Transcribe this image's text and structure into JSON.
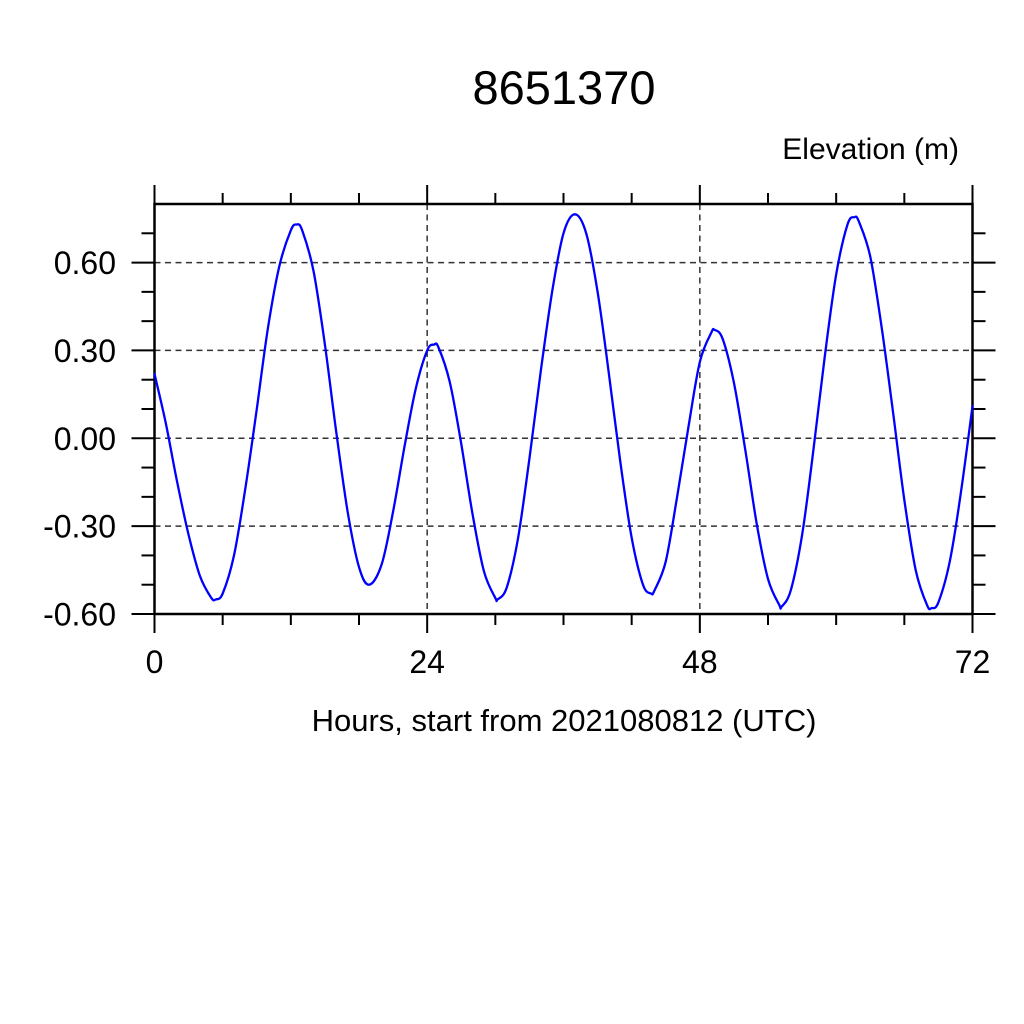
{
  "page": {
    "background": "#ffffff"
  },
  "chart_data": {
    "type": "line",
    "title": "8651370",
    "right_label": "Elevation (m)",
    "xlabel": "Hours, start from 2021080812 (UTC)",
    "xlim": [
      0,
      72
    ],
    "ylim": [
      -0.6,
      0.8
    ],
    "grid": "dashed",
    "legend": "none",
    "line_color": "#0000ff",
    "axis_color": "#000000",
    "x_major_ticks": [
      {
        "value": 0,
        "label": "0"
      },
      {
        "value": 24,
        "label": "24"
      },
      {
        "value": 48,
        "label": "48"
      },
      {
        "value": 72,
        "label": "72"
      }
    ],
    "x_minor_ticks": [
      6,
      12,
      18,
      30,
      36,
      42,
      54,
      60,
      66
    ],
    "y_major_ticks": [
      {
        "value": 0.6,
        "label": "0.60"
      },
      {
        "value": 0.3,
        "label": "0.30"
      },
      {
        "value": 0.0,
        "label": "0.00"
      },
      {
        "value": -0.3,
        "label": "-0.30"
      },
      {
        "value": -0.6,
        "label": "-0.60"
      }
    ],
    "y_minor_ticks": [
      0.7,
      0.5,
      0.4,
      0.2,
      0.1,
      -0.1,
      -0.2,
      -0.4,
      -0.5
    ],
    "x_gridlines": [
      24,
      48
    ],
    "y_gridlines": [
      0.6,
      0.3,
      0.0,
      -0.3
    ],
    "series": [
      {
        "name": "elevation",
        "points": [
          [
            0,
            0.22
          ],
          [
            1,
            0.05
          ],
          [
            2,
            -0.15
          ],
          [
            3,
            -0.33
          ],
          [
            4,
            -0.47
          ],
          [
            5,
            -0.545
          ],
          [
            5.4,
            -0.55
          ],
          [
            6,
            -0.53
          ],
          [
            7,
            -0.4
          ],
          [
            8,
            -0.17
          ],
          [
            9,
            0.1
          ],
          [
            10,
            0.38
          ],
          [
            11,
            0.59
          ],
          [
            12,
            0.71
          ],
          [
            12.5,
            0.73
          ],
          [
            13,
            0.71
          ],
          [
            14,
            0.57
          ],
          [
            15,
            0.32
          ],
          [
            16,
            0.02
          ],
          [
            17,
            -0.25
          ],
          [
            18,
            -0.44
          ],
          [
            18.9,
            -0.5
          ],
          [
            20,
            -0.43
          ],
          [
            21,
            -0.25
          ],
          [
            22,
            -0.03
          ],
          [
            23,
            0.17
          ],
          [
            24,
            0.3
          ],
          [
            24.6,
            0.32
          ],
          [
            25,
            0.31
          ],
          [
            26,
            0.19
          ],
          [
            27,
            -0.02
          ],
          [
            28,
            -0.26
          ],
          [
            29,
            -0.455
          ],
          [
            30,
            -0.545
          ],
          [
            30.2,
            -0.55
          ],
          [
            31,
            -0.51
          ],
          [
            32,
            -0.34
          ],
          [
            33,
            -0.07
          ],
          [
            34,
            0.23
          ],
          [
            35,
            0.5
          ],
          [
            36,
            0.7
          ],
          [
            37,
            0.765
          ],
          [
            38,
            0.7
          ],
          [
            39,
            0.5
          ],
          [
            40,
            0.22
          ],
          [
            41,
            -0.08
          ],
          [
            42,
            -0.34
          ],
          [
            43,
            -0.5
          ],
          [
            43.7,
            -0.53
          ],
          [
            44,
            -0.52
          ],
          [
            45,
            -0.42
          ],
          [
            46,
            -0.2
          ],
          [
            47,
            0.04
          ],
          [
            48,
            0.26
          ],
          [
            49,
            0.36
          ],
          [
            49.3,
            0.37
          ],
          [
            50,
            0.34
          ],
          [
            51,
            0.19
          ],
          [
            52,
            -0.04
          ],
          [
            53,
            -0.29
          ],
          [
            54,
            -0.48
          ],
          [
            55,
            -0.57
          ],
          [
            55.2,
            -0.575
          ],
          [
            56,
            -0.52
          ],
          [
            57,
            -0.33
          ],
          [
            58,
            -0.04
          ],
          [
            59,
            0.28
          ],
          [
            60,
            0.56
          ],
          [
            61,
            0.73
          ],
          [
            61.6,
            0.755
          ],
          [
            62,
            0.74
          ],
          [
            63,
            0.62
          ],
          [
            64,
            0.38
          ],
          [
            65,
            0.09
          ],
          [
            66,
            -0.21
          ],
          [
            67,
            -0.45
          ],
          [
            68,
            -0.57
          ],
          [
            68.4,
            -0.58
          ],
          [
            69,
            -0.56
          ],
          [
            70,
            -0.42
          ],
          [
            71,
            -0.18
          ],
          [
            72,
            0.11
          ]
        ]
      }
    ]
  }
}
